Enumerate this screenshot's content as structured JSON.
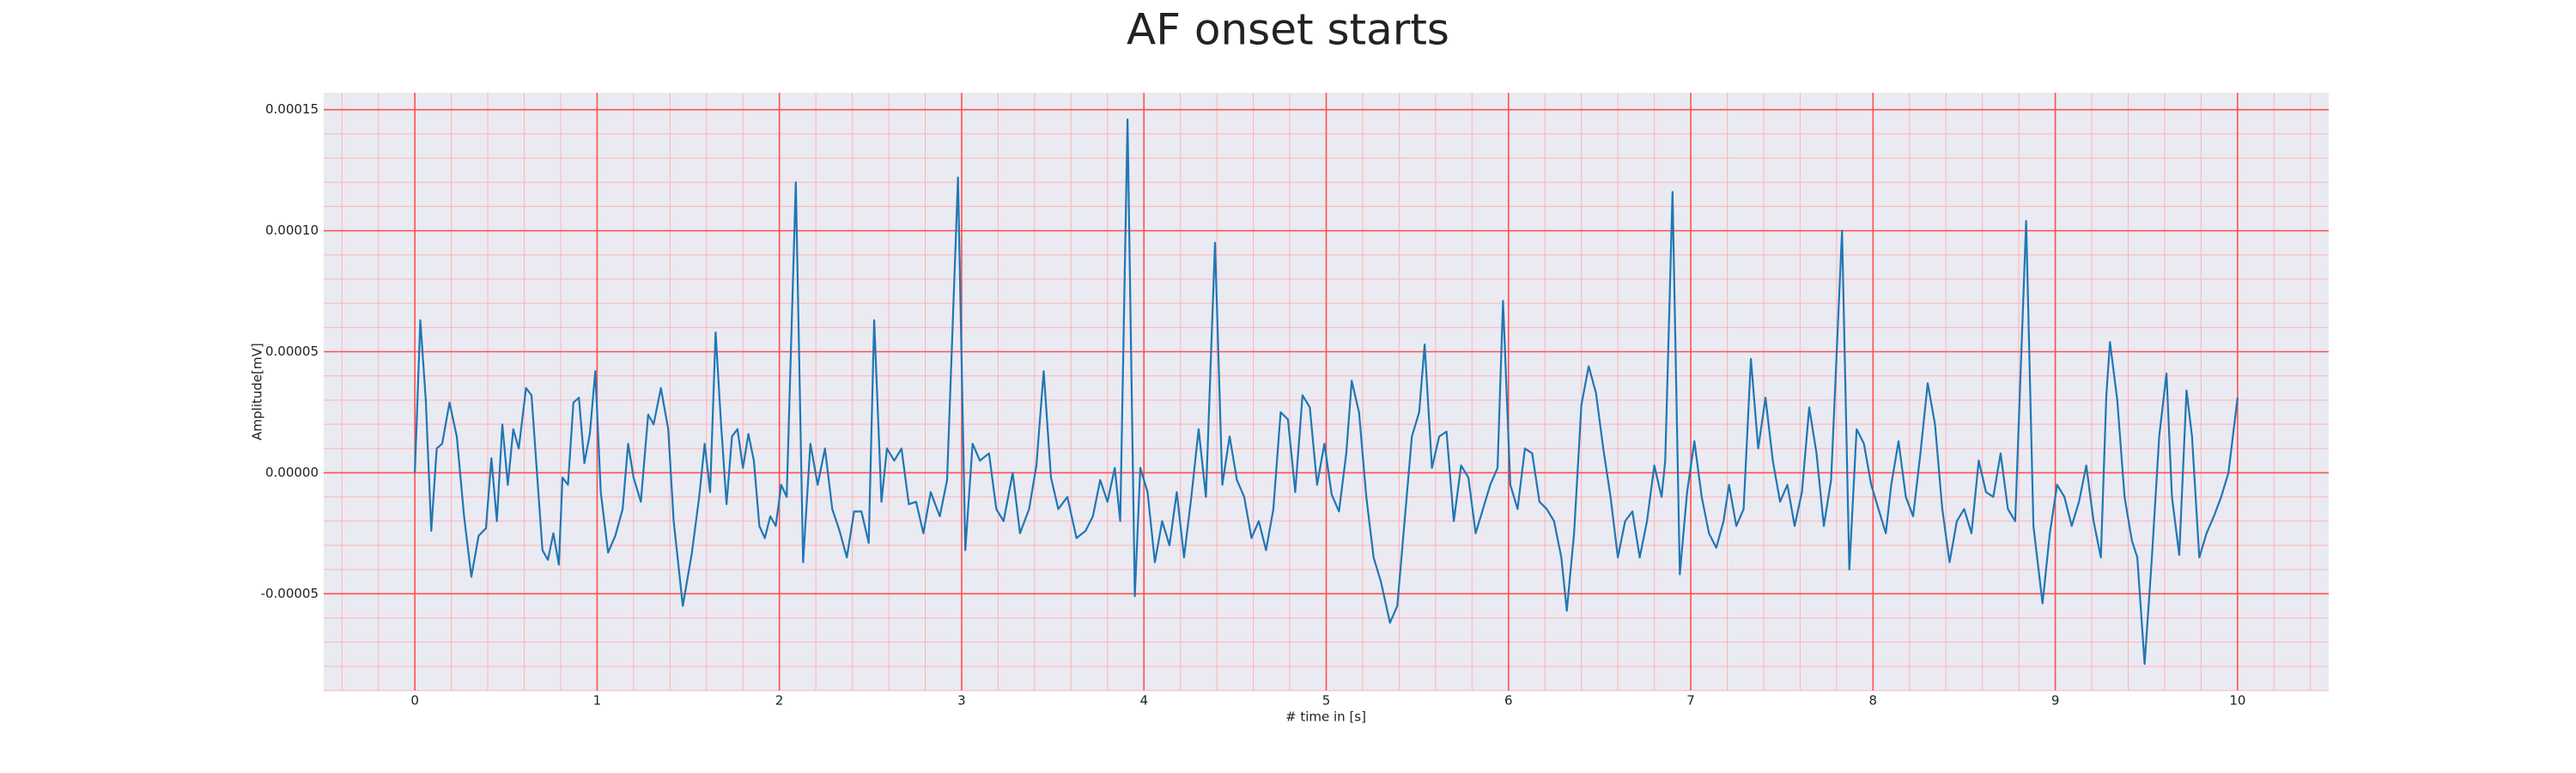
{
  "chart_data": {
    "type": "line",
    "title": "AF onset starts",
    "xlabel": "# time in [s]",
    "ylabel": "Amplitude[mV]",
    "color": "#1f77b4",
    "grid": true,
    "minor_grid": true,
    "xlim": [
      -0.5,
      10.5
    ],
    "xticks": [
      0,
      1,
      2,
      3,
      4,
      5,
      6,
      7,
      8,
      9,
      10
    ],
    "ylim": [
      -9e-05,
      0.000157
    ],
    "yticks": [
      {
        "value": -5e-05,
        "label": "-0.00005"
      },
      {
        "value": 0,
        "label": "0.00000"
      },
      {
        "value": 5e-05,
        "label": "0.00005"
      },
      {
        "value": 0.0001,
        "label": "0.00010"
      },
      {
        "value": 0.00015,
        "label": "0.00015"
      }
    ],
    "x": [
      0.0,
      0.03,
      0.06,
      0.09,
      0.12,
      0.15,
      0.19,
      0.23,
      0.27,
      0.31,
      0.35,
      0.39,
      0.42,
      0.45,
      0.48,
      0.51,
      0.54,
      0.57,
      0.61,
      0.64,
      0.67,
      0.7,
      0.73,
      0.76,
      0.79,
      0.81,
      0.84,
      0.87,
      0.9,
      0.93,
      0.96,
      0.99,
      1.02,
      1.06,
      1.1,
      1.14,
      1.17,
      1.2,
      1.24,
      1.28,
      1.31,
      1.35,
      1.39,
      1.42,
      1.47,
      1.52,
      1.56,
      1.59,
      1.62,
      1.65,
      1.68,
      1.71,
      1.74,
      1.77,
      1.8,
      1.83,
      1.86,
      1.89,
      1.92,
      1.95,
      1.98,
      2.01,
      2.04,
      2.09,
      2.13,
      2.17,
      2.21,
      2.25,
      2.29,
      2.33,
      2.37,
      2.41,
      2.45,
      2.49,
      2.52,
      2.56,
      2.59,
      2.63,
      2.67,
      2.71,
      2.75,
      2.79,
      2.83,
      2.88,
      2.92,
      2.98,
      3.02,
      3.06,
      3.1,
      3.15,
      3.19,
      3.23,
      3.28,
      3.32,
      3.37,
      3.41,
      3.45,
      3.49,
      3.53,
      3.58,
      3.63,
      3.68,
      3.72,
      3.76,
      3.8,
      3.84,
      3.87,
      3.91,
      3.95,
      3.98,
      4.02,
      4.06,
      4.1,
      4.14,
      4.18,
      4.22,
      4.26,
      4.3,
      4.34,
      4.39,
      4.43,
      4.47,
      4.51,
      4.55,
      4.59,
      4.63,
      4.67,
      4.71,
      4.75,
      4.79,
      4.83,
      4.87,
      4.91,
      4.95,
      4.99,
      5.03,
      5.07,
      5.11,
      5.14,
      5.18,
      5.22,
      5.26,
      5.3,
      5.35,
      5.39,
      5.43,
      5.47,
      5.51,
      5.54,
      5.58,
      5.62,
      5.66,
      5.7,
      5.74,
      5.78,
      5.82,
      5.86,
      5.9,
      5.94,
      5.97,
      6.01,
      6.05,
      6.09,
      6.13,
      6.17,
      6.21,
      6.25,
      6.29,
      6.32,
      6.36,
      6.4,
      6.44,
      6.48,
      6.52,
      6.56,
      6.6,
      6.64,
      6.68,
      6.72,
      6.76,
      6.8,
      6.84,
      6.86,
      6.9,
      6.94,
      6.98,
      7.02,
      7.06,
      7.1,
      7.14,
      7.18,
      7.21,
      7.25,
      7.29,
      7.33,
      7.37,
      7.41,
      7.45,
      7.49,
      7.53,
      7.57,
      7.61,
      7.65,
      7.69,
      7.73,
      7.77,
      7.83,
      7.87,
      7.91,
      7.95,
      7.99,
      8.03,
      8.07,
      8.1,
      8.14,
      8.18,
      8.22,
      8.26,
      8.3,
      8.34,
      8.38,
      8.42,
      8.46,
      8.5,
      8.54,
      8.58,
      8.62,
      8.66,
      8.7,
      8.74,
      8.78,
      8.84,
      8.88,
      8.93,
      8.97,
      9.01,
      9.05,
      9.09,
      9.13,
      9.17,
      9.21,
      9.25,
      9.28,
      9.3,
      9.34,
      9.38,
      9.42,
      9.45,
      9.49,
      9.53,
      9.57,
      9.61,
      9.64,
      9.68,
      9.72,
      9.75,
      9.79,
      9.83,
      9.87,
      9.91,
      9.95,
      10.0
    ],
    "values": [
      0,
      6.3e-05,
      3e-05,
      -2.4e-05,
      1e-05,
      1.2e-05,
      2.9e-05,
      1.5e-05,
      -1.8e-05,
      -4.3e-05,
      -2.6e-05,
      -2.3e-05,
      6e-06,
      -2e-05,
      2e-05,
      -5e-06,
      1.8e-05,
      1e-05,
      3.5e-05,
      3.2e-05,
      0,
      -3.2e-05,
      -3.6e-05,
      -2.5e-05,
      -3.8e-05,
      -2e-06,
      -5e-06,
      2.9e-05,
      3.1e-05,
      4e-06,
      1.6e-05,
      4.2e-05,
      -8e-06,
      -3.3e-05,
      -2.6e-05,
      -1.5e-05,
      1.2e-05,
      -2e-06,
      -1.2e-05,
      2.4e-05,
      2e-05,
      3.5e-05,
      1.8e-05,
      -2e-05,
      -5.5e-05,
      -3.3e-05,
      -1e-05,
      1.2e-05,
      -8e-06,
      5.8e-05,
      2e-05,
      -1.3e-05,
      1.5e-05,
      1.8e-05,
      2e-06,
      1.6e-05,
      5e-06,
      -2.2e-05,
      -2.7e-05,
      -1.8e-05,
      -2.2e-05,
      -5e-06,
      -1e-05,
      0.00012,
      -3.7e-05,
      1.2e-05,
      -5e-06,
      1e-05,
      -1.5e-05,
      -2.4e-05,
      -3.5e-05,
      -1.6e-05,
      -1.6e-05,
      -2.9e-05,
      6.3e-05,
      -1.2e-05,
      1e-05,
      5e-06,
      1e-05,
      -1.3e-05,
      -1.2e-05,
      -2.5e-05,
      -8e-06,
      -1.8e-05,
      -3e-06,
      0.000122,
      -3.2e-05,
      1.2e-05,
      5e-06,
      8e-06,
      -1.5e-05,
      -2e-05,
      0,
      -2.5e-05,
      -1.5e-05,
      3e-06,
      4.2e-05,
      -2e-06,
      -1.5e-05,
      -1e-05,
      -2.7e-05,
      -2.4e-05,
      -1.8e-05,
      -3e-06,
      -1.2e-05,
      2e-06,
      -2e-05,
      0.000146,
      -5.1e-05,
      2e-06,
      -8e-06,
      -3.7e-05,
      -2e-05,
      -3e-05,
      -8e-06,
      -3.5e-05,
      -1e-05,
      1.8e-05,
      -1e-05,
      9.5e-05,
      -5e-06,
      1.5e-05,
      -3e-06,
      -1e-05,
      -2.7e-05,
      -2e-05,
      -3.2e-05,
      -1.5e-05,
      2.5e-05,
      2.2e-05,
      -8e-06,
      3.2e-05,
      2.7e-05,
      -5e-06,
      1.2e-05,
      -9e-06,
      -1.6e-05,
      8e-06,
      3.8e-05,
      2.5e-05,
      -1e-05,
      -3.5e-05,
      -4.5e-05,
      -6.2e-05,
      -5.5e-05,
      -2e-05,
      1.5e-05,
      2.5e-05,
      5.3e-05,
      2e-06,
      1.5e-05,
      1.7e-05,
      -2e-05,
      3e-06,
      -2e-06,
      -2.5e-05,
      -1.5e-05,
      -5e-06,
      2e-06,
      7.1e-05,
      -5e-06,
      -1.5e-05,
      1e-05,
      8e-06,
      -1.2e-05,
      -1.5e-05,
      -2e-05,
      -3.5e-05,
      -5.7e-05,
      -2.5e-05,
      2.8e-05,
      4.4e-05,
      3.3e-05,
      1e-05,
      -1e-05,
      -3.5e-05,
      -2e-05,
      -1.6e-05,
      -3.5e-05,
      -2e-05,
      3e-06,
      -1e-05,
      5e-06,
      0.000116,
      -4.2e-05,
      -8e-06,
      1.3e-05,
      -1e-05,
      -2.5e-05,
      -3.1e-05,
      -2e-05,
      -5e-06,
      -2.2e-05,
      -1.5e-05,
      4.7e-05,
      1e-05,
      3.1e-05,
      5e-06,
      -1.2e-05,
      -5e-06,
      -2.2e-05,
      -8e-06,
      2.7e-05,
      8e-06,
      -2.2e-05,
      -3e-06,
      0.0001,
      -4e-05,
      1.8e-05,
      1.2e-05,
      -5e-06,
      -1.5e-05,
      -2.5e-05,
      -5e-06,
      1.3e-05,
      -1e-05,
      -1.8e-05,
      8e-06,
      3.7e-05,
      2e-05,
      -1.5e-05,
      -3.7e-05,
      -2e-05,
      -1.5e-05,
      -2.5e-05,
      5e-06,
      -8e-06,
      -1e-05,
      8e-06,
      -1.5e-05,
      -2e-05,
      0.000104,
      -2.2e-05,
      -5.4e-05,
      -2.5e-05,
      -5e-06,
      -1e-05,
      -2.2e-05,
      -1.2e-05,
      3e-06,
      -2e-05,
      -3.5e-05,
      3.2e-05,
      5.4e-05,
      3e-05,
      -1e-05,
      -2.8e-05,
      -3.5e-05,
      -7.9e-05,
      -3.5e-05,
      1.5e-05,
      4.1e-05,
      -1e-05,
      -3.4e-05,
      3.4e-05,
      1.5e-05,
      -3.5e-05,
      -2.5e-05,
      -1.8e-05,
      -1e-05,
      0,
      3.1e-05
    ]
  }
}
